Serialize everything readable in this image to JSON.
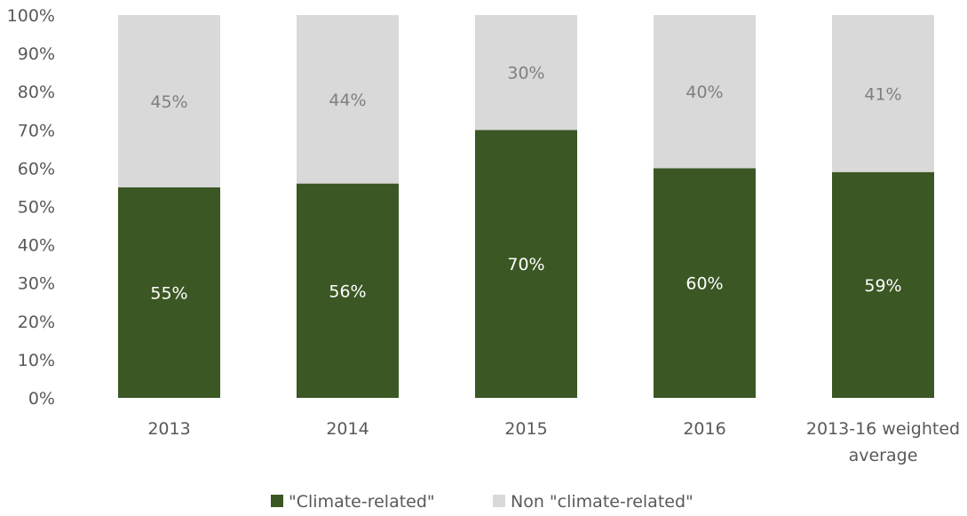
{
  "chart_data": {
    "type": "bar",
    "stacked": true,
    "percent": true,
    "categories": [
      "2013",
      "2014",
      "2015",
      "2016",
      "2013-16 weighted average"
    ],
    "series": [
      {
        "name": "\"Climate-related\"",
        "values": [
          55,
          56,
          70,
          60,
          59
        ],
        "labels": [
          "55%",
          "56%",
          "70%",
          "60%",
          "59%"
        ],
        "color": "#3b5724",
        "label_color": "#ffffff"
      },
      {
        "name": "Non \"climate-related\"",
        "values": [
          45,
          44,
          30,
          40,
          41
        ],
        "labels": [
          "45%",
          "44%",
          "30%",
          "40%",
          "41%"
        ],
        "color": "#d9d9d9",
        "label_color": "#7f7f7f"
      }
    ],
    "ylim": [
      0,
      100
    ],
    "yticks": [
      "0%",
      "10%",
      "20%",
      "30%",
      "40%",
      "50%",
      "60%",
      "70%",
      "80%",
      "90%",
      "100%"
    ],
    "grid": false,
    "legend": "bottom-center",
    "title": "",
    "xlabel": "",
    "ylabel": ""
  }
}
